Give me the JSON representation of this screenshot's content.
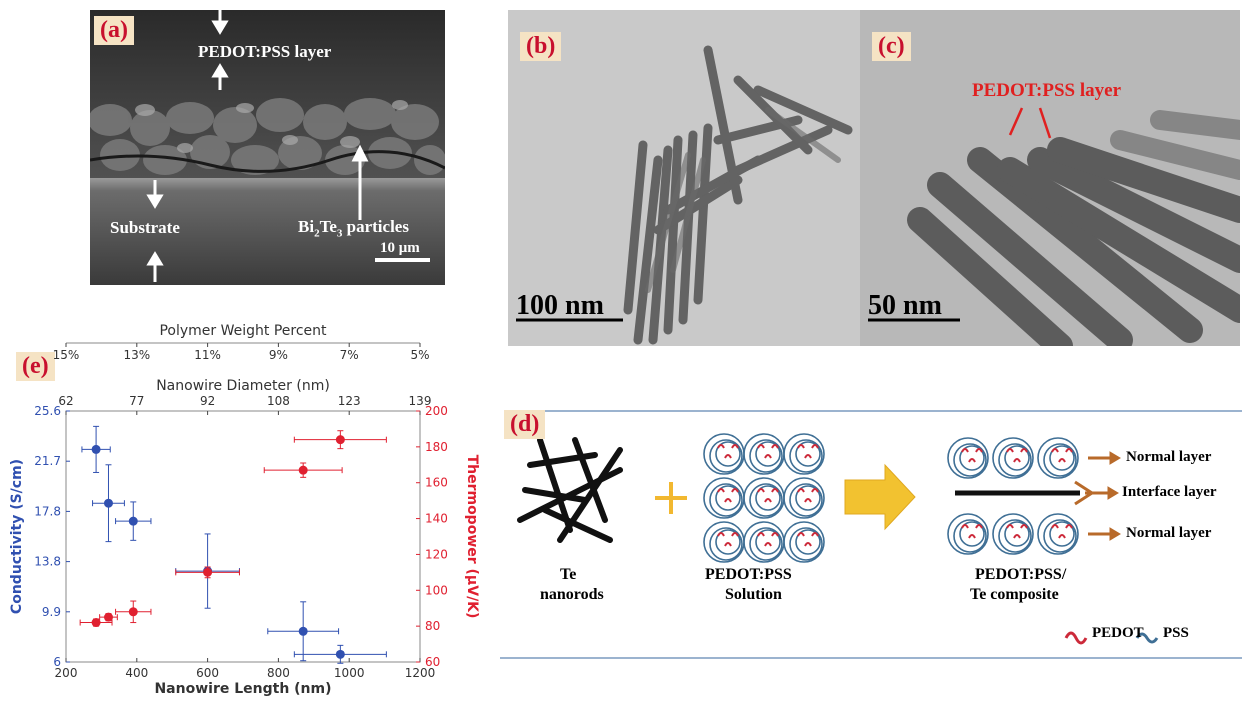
{
  "panel_a": {
    "label": "(a)",
    "layer_label": "PEDOT:PSS layer",
    "substrate_label": "Substrate",
    "particles_prefix": "Bi",
    "particles_sub1": "2",
    "particles_mid": "Te",
    "particles_sub2": "3",
    "particles_suffix": " particles",
    "scale_bar": "10 μm"
  },
  "panel_b": {
    "label": "(b)",
    "scale_bar": "100 nm"
  },
  "panel_c": {
    "label": "(c)",
    "annotation": "PEDOT:PSS layer",
    "scale_bar": "50 nm"
  },
  "panel_d": {
    "label": "(d)",
    "te_label_1": "Te",
    "te_label_2": "nanorods",
    "plus": "+",
    "solution_label_1": "PEDOT:PSS",
    "solution_label_2": "Solution",
    "composite_label_1": "PEDOT:PSS/",
    "composite_label_2": "Te composite",
    "layer_top": "Normal layer",
    "layer_mid": "Interface layer",
    "layer_bottom": "Normal layer",
    "legend_pedot": "PEDOT",
    "legend_pss": "PSS",
    "colors": {
      "pedot": "#cc2a3a",
      "pss": "#3f6f95",
      "arrow": "#f2c230",
      "layer_arrow": "#b86a2a"
    }
  },
  "panel_e": {
    "label": "(e)"
  },
  "chart_data": {
    "type": "scatter",
    "title": "",
    "xlabel": "Nanowire Length (nm)",
    "xlim": [
      200,
      1200
    ],
    "xticks": [
      "200",
      "400",
      "600",
      "800",
      "1000",
      "1200"
    ],
    "ylabel_left": "Conductivity (S/cm)",
    "ylim_left": [
      6,
      25.6
    ],
    "yticks_left": [
      "6",
      "9.9",
      "13.8",
      "17.8",
      "21.7",
      "25.6"
    ],
    "ylabel_right": "Thermopower (μV/K)",
    "ylim_right": [
      60,
      200
    ],
    "yticks_right": [
      "60",
      "80",
      "100",
      "120",
      "140",
      "160",
      "180",
      "200"
    ],
    "top_axis_1": {
      "label": "Nanowire Diameter (nm)",
      "ticks": [
        "62",
        "77",
        "92",
        "108",
        "123",
        "139"
      ]
    },
    "top_axis_2": {
      "label": "Polymer Weight Percent",
      "ticks": [
        "15%",
        "13%",
        "11%",
        "9%",
        "7%",
        "5%"
      ]
    },
    "series": [
      {
        "axis": "left",
        "color": "#3050b0",
        "points": [
          {
            "x": 285,
            "y": 22.6,
            "xerr": 40,
            "yerr": 1.8
          },
          {
            "x": 320,
            "y": 18.4,
            "xerr": 45,
            "yerr": 3.0
          },
          {
            "x": 390,
            "y": 17.0,
            "xerr": 50,
            "yerr": 1.5
          },
          {
            "x": 600,
            "y": 13.1,
            "xerr": 90,
            "yerr": 2.9
          },
          {
            "x": 870,
            "y": 8.4,
            "xerr": 100,
            "yerr": 2.3
          },
          {
            "x": 975,
            "y": 6.6,
            "xerr": 130,
            "yerr": 0.7
          }
        ]
      },
      {
        "axis": "right",
        "color": "#e02030",
        "points": [
          {
            "x": 285,
            "y": 82,
            "xerr": 45,
            "yerr": 2
          },
          {
            "x": 320,
            "y": 85,
            "xerr": 25,
            "yerr": 2
          },
          {
            "x": 390,
            "y": 88,
            "xerr": 50,
            "yerr": 6
          },
          {
            "x": 600,
            "y": 110,
            "xerr": 90,
            "yerr": 3
          },
          {
            "x": 870,
            "y": 167,
            "xerr": 110,
            "yerr": 4
          },
          {
            "x": 975,
            "y": 184,
            "xerr": 130,
            "yerr": 5
          }
        ]
      }
    ]
  }
}
